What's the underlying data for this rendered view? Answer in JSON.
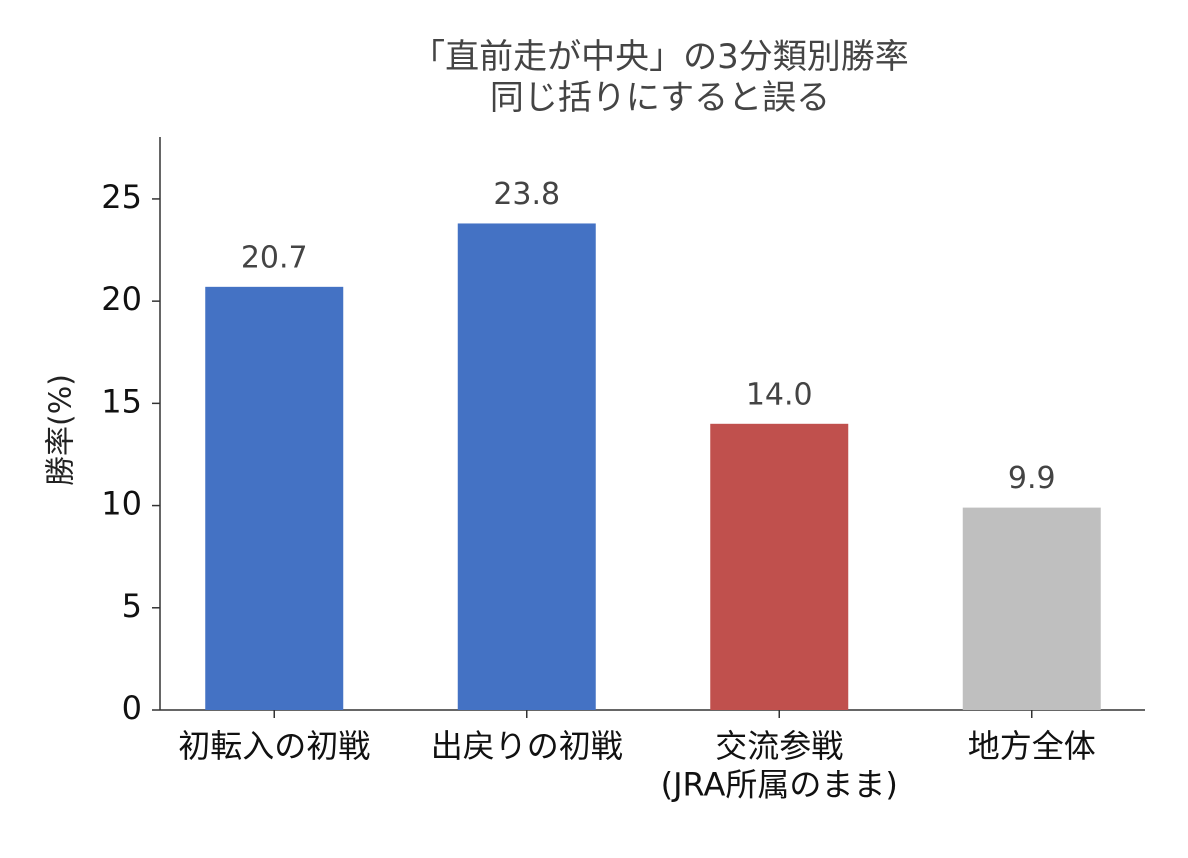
{
  "chart_data": {
    "type": "bar",
    "title": "「直前走が中央」の3分類別勝率\n同じ括りにすると誤る",
    "ylabel": "勝率(%)",
    "categories": [
      "初転入の初戦",
      "出戻りの初戦",
      "交流参戦\n(JRA所属のまま)",
      "地方全体"
    ],
    "values": [
      20.7,
      23.8,
      14.0,
      9.9
    ],
    "value_labels": [
      "20.7",
      "23.8",
      "14.0",
      "9.9"
    ],
    "colors": [
      "#4472c4",
      "#4472c4",
      "#c0504d",
      "#bfbfbf"
    ],
    "ylim": [
      0,
      28
    ],
    "yticks": [
      0,
      5,
      10,
      15,
      20,
      25
    ],
    "grid": false
  }
}
